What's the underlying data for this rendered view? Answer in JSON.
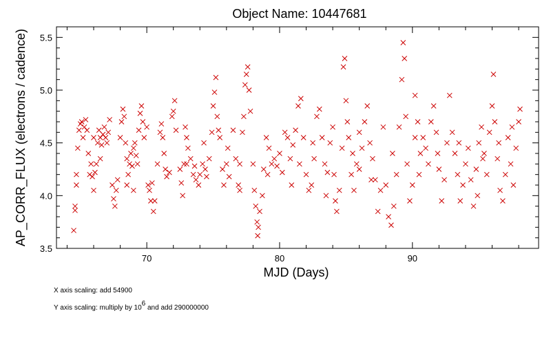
{
  "chart_data": {
    "type": "scatter",
    "title": "Object Name:  10447681",
    "xlabel": "MJD (Days)",
    "ylabel": "AP_CORR_FLUX (electrons / cadence)",
    "xlim": [
      63.2,
      99.5
    ],
    "ylim": [
      3.5,
      5.6
    ],
    "xticks": [
      70,
      80,
      90
    ],
    "xtick_labels": [
      "70",
      "80",
      "90"
    ],
    "xminor_step": 2,
    "yticks": [
      3.5,
      4.0,
      4.5,
      5.0,
      5.5
    ],
    "ytick_labels": [
      "3.5",
      "4.0",
      "4.5",
      "5.0",
      "5.5"
    ],
    "yminor_step": 0.1,
    "grid": false,
    "marker": "x",
    "series": [
      {
        "color": "#cc0000",
        "points": [
          [
            64.5,
            3.67
          ],
          [
            64.6,
            3.9
          ],
          [
            64.6,
            3.86
          ],
          [
            64.7,
            4.1
          ],
          [
            64.7,
            4.2
          ],
          [
            64.8,
            4.45
          ],
          [
            64.9,
            4.62
          ],
          [
            65.0,
            4.68
          ],
          [
            65.1,
            4.7
          ],
          [
            65.2,
            4.55
          ],
          [
            65.3,
            4.65
          ],
          [
            65.4,
            4.72
          ],
          [
            65.5,
            4.62
          ],
          [
            65.7,
            4.2
          ],
          [
            65.8,
            4.3
          ],
          [
            65.9,
            4.18
          ],
          [
            66.0,
            4.05
          ],
          [
            66.1,
            4.22
          ],
          [
            66.2,
            4.3
          ],
          [
            66.3,
            4.5
          ],
          [
            66.4,
            4.62
          ],
          [
            66.5,
            4.55
          ],
          [
            66.6,
            4.48
          ],
          [
            66.7,
            4.58
          ],
          [
            66.8,
            4.65
          ],
          [
            66.9,
            4.55
          ],
          [
            67.0,
            4.5
          ],
          [
            67.1,
            4.6
          ],
          [
            67.2,
            4.72
          ],
          [
            67.4,
            4.1
          ],
          [
            67.5,
            3.97
          ],
          [
            67.6,
            3.9
          ],
          [
            67.7,
            4.05
          ],
          [
            67.8,
            4.15
          ],
          [
            68.0,
            4.55
          ],
          [
            68.1,
            4.7
          ],
          [
            68.2,
            4.82
          ],
          [
            68.3,
            4.75
          ],
          [
            68.4,
            4.5
          ],
          [
            68.5,
            4.35
          ],
          [
            68.6,
            4.2
          ],
          [
            68.7,
            4.3
          ],
          [
            68.8,
            4.4
          ],
          [
            68.9,
            4.28
          ],
          [
            69.0,
            4.45
          ],
          [
            69.1,
            4.5
          ],
          [
            69.2,
            4.38
          ],
          [
            69.3,
            4.3
          ],
          [
            69.4,
            4.62
          ],
          [
            69.5,
            4.78
          ],
          [
            69.6,
            4.85
          ],
          [
            69.7,
            4.7
          ],
          [
            69.8,
            4.55
          ],
          [
            70.1,
            4.1
          ],
          [
            70.2,
            4.05
          ],
          [
            70.3,
            3.95
          ],
          [
            70.4,
            4.12
          ],
          [
            70.5,
            3.85
          ],
          [
            70.6,
            3.95
          ],
          [
            70.8,
            4.3
          ],
          [
            71.0,
            4.6
          ],
          [
            71.1,
            4.68
          ],
          [
            71.2,
            4.55
          ],
          [
            71.4,
            4.25
          ],
          [
            71.5,
            4.18
          ],
          [
            71.7,
            4.22
          ],
          [
            71.9,
            4.75
          ],
          [
            72.0,
            4.8
          ],
          [
            72.1,
            4.9
          ],
          [
            72.2,
            4.62
          ],
          [
            72.5,
            4.25
          ],
          [
            72.6,
            4.12
          ],
          [
            72.7,
            4.0
          ],
          [
            72.8,
            4.3
          ],
          [
            73.0,
            4.55
          ],
          [
            73.1,
            4.45
          ],
          [
            73.3,
            4.35
          ],
          [
            73.5,
            4.2
          ],
          [
            73.6,
            4.28
          ],
          [
            73.7,
            4.15
          ],
          [
            73.9,
            4.1
          ],
          [
            74.0,
            4.2
          ],
          [
            74.2,
            4.3
          ],
          [
            74.4,
            4.25
          ],
          [
            74.5,
            4.18
          ],
          [
            74.7,
            4.35
          ],
          [
            74.9,
            4.6
          ],
          [
            75.0,
            4.85
          ],
          [
            75.1,
            4.98
          ],
          [
            75.2,
            5.12
          ],
          [
            75.3,
            4.75
          ],
          [
            75.4,
            4.62
          ],
          [
            75.7,
            4.25
          ],
          [
            75.8,
            4.1
          ],
          [
            76.0,
            4.3
          ],
          [
            76.2,
            4.18
          ],
          [
            76.5,
            4.62
          ],
          [
            76.7,
            4.35
          ],
          [
            76.9,
            4.1
          ],
          [
            77.0,
            4.05
          ],
          [
            77.2,
            4.6
          ],
          [
            77.3,
            4.75
          ],
          [
            77.4,
            5.05
          ],
          [
            77.5,
            5.15
          ],
          [
            77.6,
            5.22
          ],
          [
            77.7,
            5.0
          ],
          [
            77.8,
            4.8
          ],
          [
            78.0,
            4.3
          ],
          [
            78.1,
            4.05
          ],
          [
            78.2,
            3.9
          ],
          [
            78.3,
            3.75
          ],
          [
            78.35,
            3.62
          ],
          [
            78.4,
            3.7
          ],
          [
            78.5,
            3.85
          ],
          [
            78.7,
            4.0
          ],
          [
            78.8,
            4.25
          ],
          [
            79.0,
            4.55
          ],
          [
            79.2,
            4.45
          ],
          [
            79.4,
            4.3
          ],
          [
            79.6,
            4.35
          ],
          [
            79.8,
            4.28
          ],
          [
            80.0,
            4.4
          ],
          [
            80.2,
            4.22
          ],
          [
            80.4,
            4.6
          ],
          [
            80.6,
            4.55
          ],
          [
            80.8,
            4.35
          ],
          [
            81.0,
            4.48
          ],
          [
            81.2,
            4.62
          ],
          [
            81.4,
            4.85
          ],
          [
            81.6,
            4.92
          ],
          [
            81.8,
            4.55
          ],
          [
            82.0,
            4.2
          ],
          [
            82.2,
            4.05
          ],
          [
            82.4,
            4.1
          ],
          [
            82.6,
            4.35
          ],
          [
            82.8,
            4.75
          ],
          [
            83.0,
            4.82
          ],
          [
            83.2,
            4.55
          ],
          [
            83.4,
            4.3
          ],
          [
            83.6,
            4.22
          ],
          [
            83.8,
            4.5
          ],
          [
            84.0,
            4.65
          ],
          [
            84.1,
            4.2
          ],
          [
            84.2,
            3.95
          ],
          [
            84.3,
            3.85
          ],
          [
            84.5,
            4.05
          ],
          [
            84.7,
            4.45
          ],
          [
            84.8,
            5.22
          ],
          [
            84.9,
            5.3
          ],
          [
            85.0,
            4.9
          ],
          [
            85.1,
            4.7
          ],
          [
            85.2,
            4.55
          ],
          [
            85.4,
            4.2
          ],
          [
            85.6,
            4.05
          ],
          [
            85.8,
            4.3
          ],
          [
            86.0,
            4.25
          ],
          [
            86.2,
            4.45
          ],
          [
            86.4,
            4.7
          ],
          [
            86.6,
            4.85
          ],
          [
            86.8,
            4.5
          ],
          [
            87.0,
            4.35
          ],
          [
            87.2,
            4.15
          ],
          [
            87.4,
            3.85
          ],
          [
            87.6,
            4.05
          ],
          [
            87.8,
            4.65
          ],
          [
            88.0,
            4.1
          ],
          [
            88.2,
            3.8
          ],
          [
            88.4,
            3.72
          ],
          [
            88.6,
            3.9
          ],
          [
            88.8,
            4.2
          ],
          [
            89.0,
            4.65
          ],
          [
            89.2,
            5.1
          ],
          [
            89.3,
            5.45
          ],
          [
            89.4,
            5.3
          ],
          [
            89.5,
            4.75
          ],
          [
            89.6,
            4.3
          ],
          [
            89.8,
            3.95
          ],
          [
            90.0,
            4.1
          ],
          [
            90.2,
            4.55
          ],
          [
            90.4,
            4.7
          ],
          [
            90.6,
            4.4
          ],
          [
            90.8,
            4.55
          ],
          [
            91.0,
            4.45
          ],
          [
            91.2,
            4.3
          ],
          [
            91.4,
            4.7
          ],
          [
            91.6,
            4.85
          ],
          [
            91.8,
            4.6
          ],
          [
            92.0,
            4.25
          ],
          [
            92.2,
            3.95
          ],
          [
            92.4,
            4.15
          ],
          [
            92.6,
            4.5
          ],
          [
            92.8,
            4.95
          ],
          [
            93.0,
            4.6
          ],
          [
            93.2,
            4.4
          ],
          [
            93.4,
            4.2
          ],
          [
            93.6,
            3.95
          ],
          [
            93.8,
            4.1
          ],
          [
            94.0,
            4.3
          ],
          [
            94.2,
            4.45
          ],
          [
            94.4,
            4.15
          ],
          [
            94.6,
            3.9
          ],
          [
            94.8,
            4.25
          ],
          [
            95.0,
            4.5
          ],
          [
            95.2,
            4.65
          ],
          [
            95.4,
            4.4
          ],
          [
            95.6,
            4.2
          ],
          [
            95.8,
            4.6
          ],
          [
            96.0,
            4.85
          ],
          [
            96.1,
            5.15
          ],
          [
            96.2,
            4.7
          ],
          [
            96.4,
            4.35
          ],
          [
            96.6,
            4.05
          ],
          [
            96.8,
            3.95
          ],
          [
            97.0,
            4.2
          ],
          [
            97.2,
            4.55
          ],
          [
            97.4,
            4.3
          ],
          [
            97.6,
            4.1
          ],
          [
            97.8,
            4.45
          ],
          [
            98.0,
            4.7
          ],
          [
            98.1,
            4.82
          ],
          [
            65.6,
            4.4
          ],
          [
            66.5,
            4.35
          ],
          [
            68.5,
            4.1
          ],
          [
            70.0,
            4.65
          ],
          [
            71.3,
            4.4
          ],
          [
            72.9,
            4.65
          ],
          [
            74.3,
            4.5
          ],
          [
            76.1,
            4.45
          ],
          [
            79.1,
            4.2
          ],
          [
            80.9,
            4.1
          ],
          [
            82.5,
            4.5
          ],
          [
            83.5,
            4.0
          ],
          [
            85.5,
            4.4
          ],
          [
            86.9,
            4.15
          ],
          [
            88.5,
            4.4
          ],
          [
            90.5,
            4.2
          ],
          [
            91.9,
            4.4
          ],
          [
            93.5,
            4.5
          ],
          [
            94.9,
            4.0
          ],
          [
            96.5,
            4.5
          ],
          [
            97.5,
            4.65
          ],
          [
            69.0,
            4.05
          ],
          [
            73.0,
            4.3
          ],
          [
            77.0,
            4.3
          ],
          [
            81.5,
            4.3
          ],
          [
            86.0,
            4.6
          ],
          [
            90.2,
            4.95
          ],
          [
            95.3,
            4.35
          ],
          [
            66.0,
            4.55
          ],
          [
            75.5,
            4.55
          ]
        ]
      }
    ],
    "notes": {
      "x_scaling": "X axis scaling: add 54900",
      "y_scaling_prefix": "Y axis scaling: multiply by 10",
      "y_scaling_exponent": "6",
      "y_scaling_suffix": " and add 290000000"
    }
  }
}
